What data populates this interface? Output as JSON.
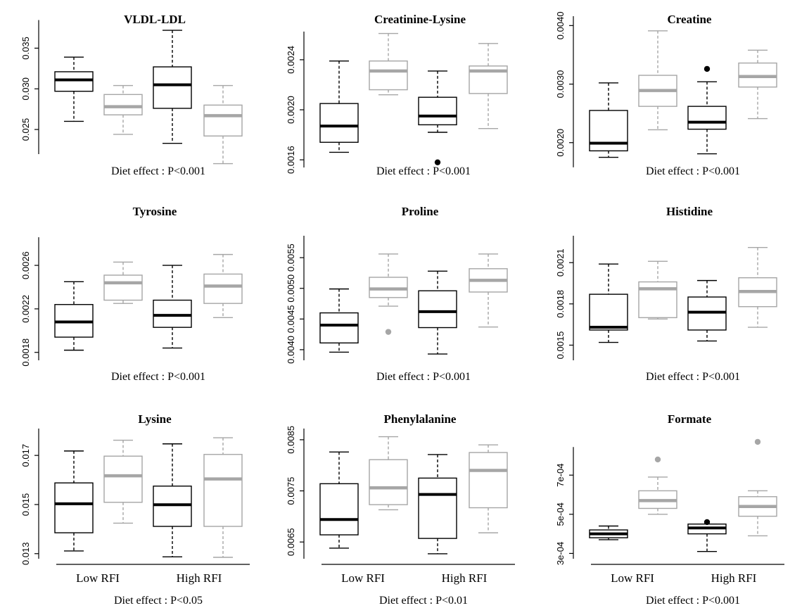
{
  "colors": {
    "black": "#000000",
    "grey": "#a6a6a6"
  },
  "group_labels": [
    "Low RFI",
    "High RFI"
  ],
  "chart_data": [
    {
      "type": "boxplot",
      "title": "VLDL-LDL",
      "ylim": [
        0.0205,
        0.0385
      ],
      "yticks": [
        0.025,
        0.03,
        0.035
      ],
      "ytick_labels": [
        "0.025",
        "0.030",
        "0.035"
      ],
      "boxes": [
        {
          "color": "black",
          "whisker_low": 0.026,
          "q1": 0.0297,
          "median": 0.0311,
          "q3": 0.0321,
          "whisker_high": 0.0339,
          "outliers": []
        },
        {
          "color": "grey",
          "whisker_low": 0.0244,
          "q1": 0.0268,
          "median": 0.0278,
          "q3": 0.0293,
          "whisker_high": 0.0304,
          "outliers": []
        },
        {
          "color": "black",
          "whisker_low": 0.0233,
          "q1": 0.0276,
          "median": 0.0305,
          "q3": 0.0327,
          "whisker_high": 0.0372,
          "outliers": []
        },
        {
          "color": "grey",
          "whisker_low": 0.0208,
          "q1": 0.0242,
          "median": 0.0267,
          "q3": 0.028,
          "whisker_high": 0.0304,
          "outliers": []
        }
      ],
      "footer": "Diet effect : P<0.001",
      "show_x_axis": false
    },
    {
      "type": "boxplot",
      "title": "Creatinine-Lysine",
      "ylim": [
        0.00155,
        0.00272
      ],
      "yticks": [
        0.0016,
        0.002,
        0.0024
      ],
      "ytick_labels": [
        "0.0016",
        "0.0020",
        "0.0024"
      ],
      "boxes": [
        {
          "color": "black",
          "whisker_low": 0.00166,
          "q1": 0.00174,
          "median": 0.00187,
          "q3": 0.00205,
          "whisker_high": 0.00239,
          "outliers": []
        },
        {
          "color": "grey",
          "whisker_low": 0.00212,
          "q1": 0.00216,
          "median": 0.00231,
          "q3": 0.00239,
          "whisker_high": 0.00261,
          "outliers": []
        },
        {
          "color": "black",
          "whisker_low": 0.00182,
          "q1": 0.00188,
          "median": 0.00195,
          "q3": 0.0021,
          "whisker_high": 0.00231,
          "outliers": [
            0.00158
          ]
        },
        {
          "color": "grey",
          "whisker_low": 0.00185,
          "q1": 0.00213,
          "median": 0.00231,
          "q3": 0.00235,
          "whisker_high": 0.00253,
          "outliers": []
        }
      ],
      "footer": "Diet effect : P<0.001",
      "show_x_axis": false
    },
    {
      "type": "boxplot",
      "title": "Creatine",
      "ylim": [
        0.0016,
        0.0041
      ],
      "yticks": [
        0.002,
        0.003,
        0.004
      ],
      "ytick_labels": [
        "0.0020",
        "0.0030",
        "0.0040"
      ],
      "boxes": [
        {
          "color": "black",
          "whisker_low": 0.00175,
          "q1": 0.00186,
          "median": 0.00199,
          "q3": 0.00255,
          "whisker_high": 0.00302,
          "outliers": []
        },
        {
          "color": "grey",
          "whisker_low": 0.00222,
          "q1": 0.00262,
          "median": 0.00289,
          "q3": 0.00315,
          "whisker_high": 0.00391,
          "outliers": []
        },
        {
          "color": "black",
          "whisker_low": 0.00181,
          "q1": 0.00223,
          "median": 0.00235,
          "q3": 0.00262,
          "whisker_high": 0.00304,
          "outliers": [
            0.00326
          ]
        },
        {
          "color": "grey",
          "whisker_low": 0.00241,
          "q1": 0.00295,
          "median": 0.00313,
          "q3": 0.00336,
          "whisker_high": 0.00358,
          "outliers": []
        }
      ],
      "footer": "Diet effect : P<0.001",
      "show_x_axis": false
    },
    {
      "type": "boxplot",
      "title": "Tyrosine",
      "ylim": [
        0.00174,
        0.00284
      ],
      "yticks": [
        0.0018,
        0.0022,
        0.0026
      ],
      "ytick_labels": [
        "0.0018",
        "0.0022",
        "0.0026"
      ],
      "boxes": [
        {
          "color": "black",
          "whisker_low": 0.00182,
          "q1": 0.00194,
          "median": 0.00208,
          "q3": 0.00224,
          "whisker_high": 0.00245,
          "outliers": []
        },
        {
          "color": "grey",
          "whisker_low": 0.00225,
          "q1": 0.00228,
          "median": 0.00244,
          "q3": 0.00251,
          "whisker_high": 0.00263,
          "outliers": []
        },
        {
          "color": "black",
          "whisker_low": 0.00184,
          "q1": 0.00203,
          "median": 0.00214,
          "q3": 0.00228,
          "whisker_high": 0.0026,
          "outliers": []
        },
        {
          "color": "grey",
          "whisker_low": 0.00212,
          "q1": 0.00225,
          "median": 0.00241,
          "q3": 0.00252,
          "whisker_high": 0.0027,
          "outliers": []
        }
      ],
      "footer": "Diet effect : P<0.001",
      "show_x_axis": false
    },
    {
      "type": "boxplot",
      "title": "Proline",
      "ylim": [
        0.00385,
        0.0058
      ],
      "yticks": [
        0.004,
        0.0045,
        0.005,
        0.0055
      ],
      "ytick_labels": [
        "0.0040",
        "0.0045",
        "0.0050",
        "0.0055"
      ],
      "boxes": [
        {
          "color": "black",
          "whisker_low": 0.00396,
          "q1": 0.00411,
          "median": 0.0044,
          "q3": 0.0046,
          "whisker_high": 0.00499,
          "outliers": []
        },
        {
          "color": "grey",
          "whisker_low": 0.00471,
          "q1": 0.00485,
          "median": 0.00499,
          "q3": 0.00518,
          "whisker_high": 0.00556,
          "outliers": [
            0.00429
          ]
        },
        {
          "color": "black",
          "whisker_low": 0.00393,
          "q1": 0.00436,
          "median": 0.00462,
          "q3": 0.00496,
          "whisker_high": 0.00528,
          "outliers": []
        },
        {
          "color": "grey",
          "whisker_low": 0.00437,
          "q1": 0.00494,
          "median": 0.00513,
          "q3": 0.00532,
          "whisker_high": 0.00556,
          "outliers": []
        }
      ],
      "footer": "Diet effect : P<0.001",
      "show_x_axis": false
    },
    {
      "type": "boxplot",
      "title": "Histidine",
      "ylim": [
        0.0014,
        0.00227
      ],
      "yticks": [
        0.0015,
        0.0018,
        0.0021
      ],
      "ytick_labels": [
        "0.0015",
        "0.0018",
        "0.0021"
      ],
      "boxes": [
        {
          "color": "black",
          "whisker_low": 0.00152,
          "q1": 0.00161,
          "median": 0.00163,
          "q3": 0.00187,
          "whisker_high": 0.00209,
          "outliers": []
        },
        {
          "color": "grey",
          "whisker_low": 0.00169,
          "q1": 0.0017,
          "median": 0.00191,
          "q3": 0.00196,
          "whisker_high": 0.00211,
          "outliers": []
        },
        {
          "color": "black",
          "whisker_low": 0.00153,
          "q1": 0.00161,
          "median": 0.00174,
          "q3": 0.00185,
          "whisker_high": 0.00197,
          "outliers": []
        },
        {
          "color": "grey",
          "whisker_low": 0.00163,
          "q1": 0.00178,
          "median": 0.00189,
          "q3": 0.00199,
          "whisker_high": 0.00221,
          "outliers": []
        }
      ],
      "footer": "Diet effect : P<0.001",
      "show_x_axis": false
    },
    {
      "type": "boxplot",
      "title": "Lysine",
      "ylim": [
        0.01285,
        0.01795
      ],
      "yticks": [
        0.013,
        0.015,
        0.017
      ],
      "ytick_labels": [
        "0.013",
        "0.015",
        "0.017"
      ],
      "boxes": [
        {
          "color": "black",
          "whisker_low": 0.01311,
          "q1": 0.01385,
          "median": 0.01503,
          "q3": 0.01588,
          "whisker_high": 0.01718,
          "outliers": []
        },
        {
          "color": "grey",
          "whisker_low": 0.01424,
          "q1": 0.01509,
          "median": 0.01617,
          "q3": 0.01697,
          "whisker_high": 0.01762,
          "outliers": []
        },
        {
          "color": "black",
          "whisker_low": 0.01287,
          "q1": 0.01411,
          "median": 0.01499,
          "q3": 0.01575,
          "whisker_high": 0.01747,
          "outliers": []
        },
        {
          "color": "grey",
          "whisker_low": 0.01285,
          "q1": 0.01411,
          "median": 0.01604,
          "q3": 0.01704,
          "whisker_high": 0.01772,
          "outliers": []
        }
      ],
      "footer": "Diet effect : P<0.05",
      "show_x_axis": true
    },
    {
      "type": "boxplot",
      "title": "Phenylalanine",
      "ylim": [
        0.0062,
        0.00865
      ],
      "yticks": [
        0.0065,
        0.0075,
        0.0085
      ],
      "ytick_labels": [
        "0.0065",
        "0.0075",
        "0.0085"
      ],
      "boxes": [
        {
          "color": "black",
          "whisker_low": 0.00638,
          "q1": 0.00664,
          "median": 0.00694,
          "q3": 0.00764,
          "whisker_high": 0.00826,
          "outliers": []
        },
        {
          "color": "grey",
          "whisker_low": 0.00713,
          "q1": 0.00723,
          "median": 0.00756,
          "q3": 0.00811,
          "whisker_high": 0.00856,
          "outliers": []
        },
        {
          "color": "black",
          "whisker_low": 0.00627,
          "q1": 0.00657,
          "median": 0.00743,
          "q3": 0.00775,
          "whisker_high": 0.00821,
          "outliers": []
        },
        {
          "color": "grey",
          "whisker_low": 0.00668,
          "q1": 0.00717,
          "median": 0.0079,
          "q3": 0.00825,
          "whisker_high": 0.0084,
          "outliers": []
        }
      ],
      "footer": "Diet effect : P<0.01",
      "show_x_axis": true
    },
    {
      "type": "boxplot",
      "title": "Formate",
      "ylim": [
        0.00028,
        0.00092
      ],
      "yticks": [
        0.0003,
        0.0005,
        0.0007
      ],
      "ytick_labels": [
        "3e-04",
        "5e-04",
        "7e-04"
      ],
      "boxes": [
        {
          "color": "black",
          "whisker_low": 0.00037,
          "q1": 0.00038,
          "median": 0.0004,
          "q3": 0.00042,
          "whisker_high": 0.00044,
          "outliers": []
        },
        {
          "color": "grey",
          "whisker_low": 0.0005,
          "q1": 0.00053,
          "median": 0.00057,
          "q3": 0.00062,
          "whisker_high": 0.00069,
          "outliers": [
            0.00078
          ]
        },
        {
          "color": "black",
          "whisker_low": 0.00031,
          "q1": 0.0004,
          "median": 0.00043,
          "q3": 0.00045,
          "whisker_high": 0.00045,
          "outliers": [
            0.00046
          ]
        },
        {
          "color": "grey",
          "whisker_low": 0.00039,
          "q1": 0.00049,
          "median": 0.00054,
          "q3": 0.00059,
          "whisker_high": 0.00062,
          "outliers": [
            0.00087
          ]
        }
      ],
      "footer": "Diet effect : P<0.001",
      "show_x_axis": true
    }
  ]
}
